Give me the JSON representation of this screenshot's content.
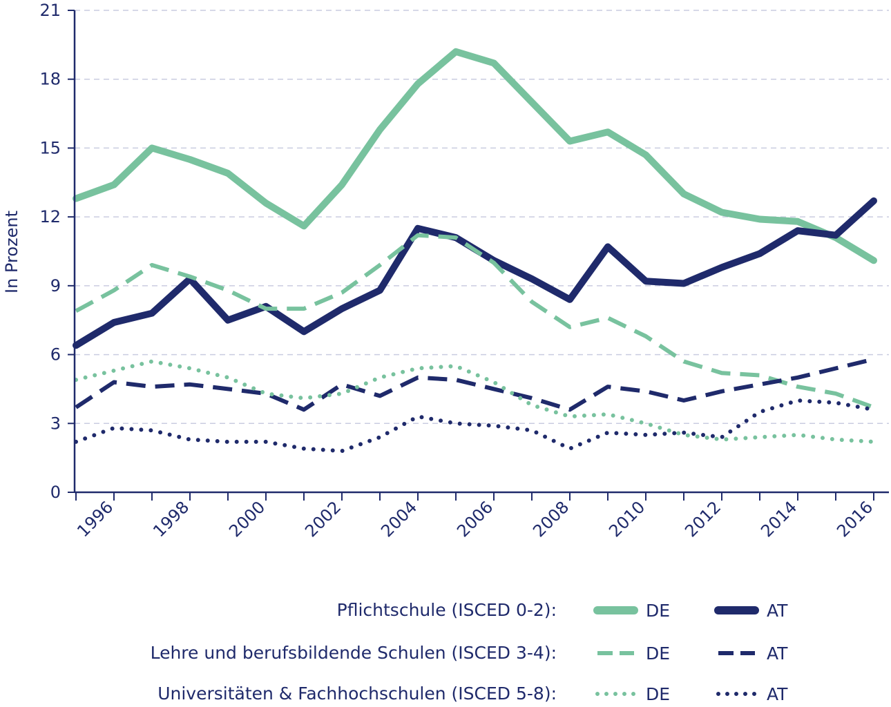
{
  "chart_data": {
    "type": "line",
    "title": "",
    "xlabel": "",
    "ylabel": "In Prozent",
    "ylim": [
      0,
      21
    ],
    "yticks": [
      "0",
      "3",
      "6",
      "9",
      "12",
      "15",
      "18",
      "21"
    ],
    "xlim": [
      1995,
      2016
    ],
    "xticks": [
      "1996",
      "1998",
      "2000",
      "2002",
      "2004",
      "2006",
      "2008",
      "2010",
      "2012",
      "2014",
      "2016"
    ],
    "grid": "horizontal dashed",
    "x": [
      1995,
      1996,
      1997,
      1998,
      1999,
      2000,
      2001,
      2002,
      2003,
      2004,
      2005,
      2006,
      2007,
      2008,
      2009,
      2010,
      2011,
      2012,
      2013,
      2014,
      2015,
      2016
    ],
    "colors": {
      "DE": "#78c29e",
      "AT": "#1f2a6b"
    },
    "series": [
      {
        "group": "Pflichtschule (ISCED 0-2):",
        "name": "DE",
        "country": "DE",
        "style": "solid",
        "values": [
          12.8,
          13.4,
          15.0,
          14.5,
          13.9,
          12.6,
          11.6,
          13.4,
          15.8,
          17.8,
          19.2,
          18.7,
          17.0,
          15.3,
          15.7,
          14.7,
          13.0,
          12.2,
          11.9,
          11.8,
          11.1,
          10.1
        ]
      },
      {
        "group": "Pflichtschule (ISCED 0-2):",
        "name": "AT",
        "country": "AT",
        "style": "solid",
        "values": [
          6.4,
          7.4,
          7.8,
          9.3,
          7.5,
          8.1,
          7.0,
          8.0,
          8.8,
          11.5,
          11.1,
          10.1,
          9.3,
          8.4,
          10.7,
          9.2,
          9.1,
          9.8,
          10.4,
          11.4,
          11.2,
          12.7
        ]
      },
      {
        "group": "Lehre und berufsbildende Schulen (ISCED 3-4):",
        "name": "DE",
        "country": "DE",
        "style": "dashed",
        "values": [
          7.9,
          8.8,
          9.9,
          9.4,
          8.8,
          8.0,
          8.0,
          8.7,
          9.9,
          11.2,
          11.1,
          10.0,
          8.3,
          7.2,
          7.6,
          6.8,
          5.7,
          5.2,
          5.1,
          4.6,
          4.3,
          3.7
        ]
      },
      {
        "group": "Lehre und berufsbildende Schulen (ISCED 3-4):",
        "name": "AT",
        "country": "AT",
        "style": "dashed",
        "values": [
          3.7,
          4.8,
          4.6,
          4.7,
          4.5,
          4.3,
          3.6,
          4.7,
          4.2,
          5.0,
          4.9,
          4.5,
          4.1,
          3.6,
          4.6,
          4.4,
          4.0,
          4.4,
          4.7,
          5.0,
          5.4,
          5.8
        ]
      },
      {
        "group": "Universitäten & Fachhochschulen (ISCED 5-8):",
        "name": "DE",
        "country": "DE",
        "style": "dotted",
        "values": [
          4.9,
          5.3,
          5.7,
          5.4,
          5.0,
          4.3,
          4.1,
          4.3,
          5.0,
          5.4,
          5.5,
          4.8,
          3.8,
          3.3,
          3.4,
          3.0,
          2.5,
          2.3,
          2.4,
          2.5,
          2.3,
          2.2
        ]
      },
      {
        "group": "Universitäten & Fachhochschulen (ISCED 5-8):",
        "name": "AT",
        "country": "AT",
        "style": "dotted",
        "values": [
          2.2,
          2.8,
          2.7,
          2.3,
          2.2,
          2.2,
          1.9,
          1.8,
          2.4,
          3.3,
          3.0,
          2.9,
          2.7,
          1.9,
          2.6,
          2.5,
          2.6,
          2.4,
          3.5,
          4.0,
          3.9,
          3.6
        ]
      }
    ],
    "legend": {
      "placement": "bottom",
      "rows": [
        {
          "label": "Pflichtschule (ISCED 0-2):",
          "style": "solid",
          "de": "DE",
          "at": "AT"
        },
        {
          "label": "Lehre und berufsbildende Schulen (ISCED 3-4):",
          "style": "dashed",
          "de": "DE",
          "at": "AT"
        },
        {
          "label": "Universitäten & Fachhochschulen (ISCED 5-8):",
          "style": "dotted",
          "de": "DE",
          "at": "AT"
        }
      ]
    }
  }
}
